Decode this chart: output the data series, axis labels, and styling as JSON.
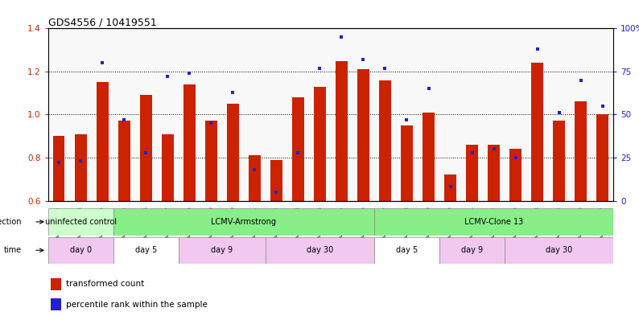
{
  "title": "GDS4556 / 10419551",
  "samples": [
    "GSM1083152",
    "GSM1083153",
    "GSM1083154",
    "GSM1083155",
    "GSM1083156",
    "GSM1083157",
    "GSM1083158",
    "GSM1083159",
    "GSM1083160",
    "GSM1083161",
    "GSM1083162",
    "GSM1083163",
    "GSM1083164",
    "GSM1083165",
    "GSM1083166",
    "GSM1083167",
    "GSM1083168",
    "GSM1083169",
    "GSM1083170",
    "GSM1083171",
    "GSM1083172",
    "GSM1083173",
    "GSM1083174",
    "GSM1083175",
    "GSM1083176",
    "GSM1083177"
  ],
  "red_bars": [
    0.9,
    0.91,
    1.15,
    0.97,
    1.09,
    0.91,
    1.14,
    0.97,
    1.05,
    0.81,
    0.79,
    1.08,
    1.13,
    1.25,
    1.21,
    1.16,
    0.95,
    1.01,
    0.72,
    0.86,
    0.86,
    0.84,
    1.24,
    0.97,
    1.06,
    1.0
  ],
  "blue_dots": [
    22,
    23,
    80,
    47,
    28,
    72,
    74,
    45,
    63,
    18,
    5,
    28,
    77,
    95,
    82,
    77,
    47,
    65,
    8,
    28,
    30,
    25,
    88,
    51,
    70,
    55
  ],
  "ylim_left": [
    0.6,
    1.4
  ],
  "ylim_right": [
    0,
    100
  ],
  "yticks_left": [
    0.6,
    0.8,
    1.0,
    1.2,
    1.4
  ],
  "yticks_right": [
    0,
    25,
    50,
    75,
    100
  ],
  "ytick_labels_right": [
    "0",
    "25",
    "50",
    "75",
    "100%"
  ],
  "bar_color": "#cc2200",
  "dot_color": "#2222cc",
  "inf_groups": [
    {
      "label": "uninfected control",
      "start": 0,
      "end": 3,
      "color": "#ccffcc"
    },
    {
      "label": "LCMV-Armstrong",
      "start": 3,
      "end": 15,
      "color": "#88ee88"
    },
    {
      "label": "LCMV-Clone 13",
      "start": 15,
      "end": 26,
      "color": "#88ee88"
    }
  ],
  "time_groups": [
    {
      "label": "day 0",
      "start": 0,
      "end": 3,
      "color": "#f0c8f0"
    },
    {
      "label": "day 5",
      "start": 3,
      "end": 6,
      "color": "#ffffff"
    },
    {
      "label": "day 9",
      "start": 6,
      "end": 10,
      "color": "#f0c8f0"
    },
    {
      "label": "day 30",
      "start": 10,
      "end": 15,
      "color": "#f0c8f0"
    },
    {
      "label": "day 5",
      "start": 15,
      "end": 18,
      "color": "#ffffff"
    },
    {
      "label": "day 9",
      "start": 18,
      "end": 21,
      "color": "#f0c8f0"
    },
    {
      "label": "day 30",
      "start": 21,
      "end": 26,
      "color": "#f0c8f0"
    }
  ]
}
